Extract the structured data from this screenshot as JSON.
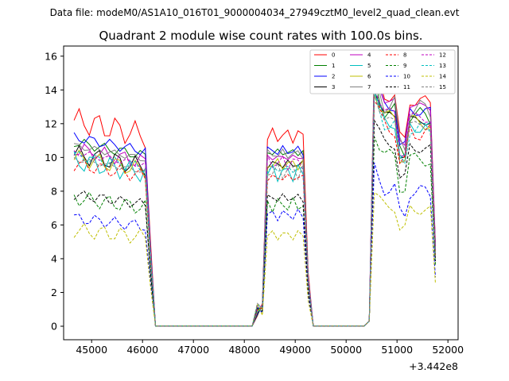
{
  "chart_data": {
    "type": "line",
    "suptitle": "Data file: modeM0/AS1A10_016T01_9000004034_27949cztM0_level2_quad_clean.evt",
    "title": "Quadrant 2 module wise count rates with 100.0s bins.",
    "xlabel": "",
    "ylabel": "",
    "x_offset_label": "+3.442e8",
    "xlim": [
      44450,
      52200
    ],
    "ylim": [
      -0.8,
      16.6
    ],
    "xticks": [
      45000,
      46000,
      47000,
      48000,
      49000,
      50000,
      51000,
      52000
    ],
    "yticks": [
      0,
      2,
      4,
      6,
      8,
      10,
      12,
      14,
      16
    ],
    "xtick_labels": [
      "45000",
      "46000",
      "47000",
      "48000",
      "49000",
      "50000",
      "51000",
      "52000"
    ],
    "ytick_labels": [
      "0",
      "2",
      "4",
      "6",
      "8",
      "10",
      "12",
      "14",
      "16"
    ],
    "legend": {
      "position": "top-right",
      "columns": 4
    },
    "segments": [
      {
        "start": 44655,
        "count": 16
      },
      {
        "start": 46255,
        "count": 21
      },
      {
        "start": 48355,
        "count": 10
      },
      {
        "start": 49355,
        "count": 11
      },
      {
        "start": 50455,
        "count": 14
      }
    ],
    "series": [
      {
        "name": "0",
        "color": "#ff0000",
        "dash": false,
        "base": [
          12.2,
          0.0,
          11.3,
          13.9
        ],
        "noise": [
          0.75,
          -0.1,
          0.45,
          0.4
        ]
      },
      {
        "name": "1",
        "color": "#008000",
        "dash": false,
        "base": [
          10.9,
          0.0,
          10.3,
          13.0
        ],
        "noise": [
          -0.3,
          0.3,
          -0.2,
          0.5
        ]
      },
      {
        "name": "2",
        "color": "#0000ff",
        "dash": false,
        "base": [
          11.2,
          0.0,
          10.4,
          13.3
        ],
        "noise": [
          0.3,
          -0.5,
          0.3,
          -0.35
        ]
      },
      {
        "name": "3",
        "color": "#000000",
        "dash": false,
        "base": [
          10.2,
          0.0,
          9.6,
          12.7
        ],
        "noise": [
          -0.55,
          0.15,
          -0.25,
          0.2
        ]
      },
      {
        "name": "4",
        "color": "#bf00bf",
        "dash": false,
        "base": [
          10.5,
          0.0,
          10.0,
          13.6
        ],
        "noise": [
          0.45,
          0.35,
          0.15,
          -0.2
        ]
      },
      {
        "name": "5",
        "color": "#00bfbf",
        "dash": false,
        "base": [
          9.8,
          0.0,
          9.1,
          12.3
        ],
        "noise": [
          -0.6,
          -0.2,
          -0.55,
          0.4
        ]
      },
      {
        "name": "6",
        "color": "#bfbf00",
        "dash": false,
        "base": [
          10.0,
          0.0,
          9.6,
          12.6
        ],
        "noise": [
          0.5,
          0.55,
          0.35,
          -0.4
        ]
      },
      {
        "name": "7",
        "color": "#808080",
        "dash": false,
        "base": [
          10.7,
          0.0,
          10.2,
          13.4
        ],
        "noise": [
          0.2,
          0.4,
          -0.3,
          0.6
        ]
      },
      {
        "name": "8",
        "color": "#ff0000",
        "dash": true,
        "base": [
          9.6,
          0.0,
          8.8,
          12.0
        ],
        "noise": [
          -0.4,
          0.4,
          0.2,
          -0.55
        ]
      },
      {
        "name": "9",
        "color": "#008000",
        "dash": true,
        "base": [
          7.6,
          0.0,
          7.2,
          10.3
        ],
        "noise": [
          0.45,
          0.2,
          -0.45,
          0.35
        ]
      },
      {
        "name": "10",
        "color": "#0000ff",
        "dash": true,
        "base": [
          6.4,
          0.0,
          6.6,
          8.3
        ],
        "noise": [
          -0.35,
          -0.4,
          0.35,
          -0.45
        ]
      },
      {
        "name": "11",
        "color": "#000000",
        "dash": true,
        "base": [
          7.8,
          0.0,
          7.6,
          11.0
        ],
        "noise": [
          0.3,
          -0.15,
          0.25,
          0.3
        ]
      },
      {
        "name": "12",
        "color": "#bf00bf",
        "dash": true,
        "base": [
          10.3,
          0.0,
          9.7,
          12.9
        ],
        "noise": [
          -0.2,
          0.5,
          0.45,
          -0.25
        ]
      },
      {
        "name": "13",
        "color": "#00bfbf",
        "dash": true,
        "base": [
          10.1,
          0.0,
          9.3,
          12.2
        ],
        "noise": [
          0.35,
          -0.55,
          -0.2,
          0.45
        ]
      },
      {
        "name": "14",
        "color": "#bfbf00",
        "dash": true,
        "base": [
          5.7,
          0.0,
          5.4,
          7.2
        ],
        "noise": [
          -0.45,
          0.3,
          -0.3,
          -0.3
        ]
      },
      {
        "name": "15",
        "color": "#808080",
        "dash": true,
        "base": [
          9.9,
          0.0,
          9.2,
          12.4
        ],
        "noise": [
          0.15,
          -0.3,
          0.5,
          0.2
        ]
      }
    ]
  }
}
